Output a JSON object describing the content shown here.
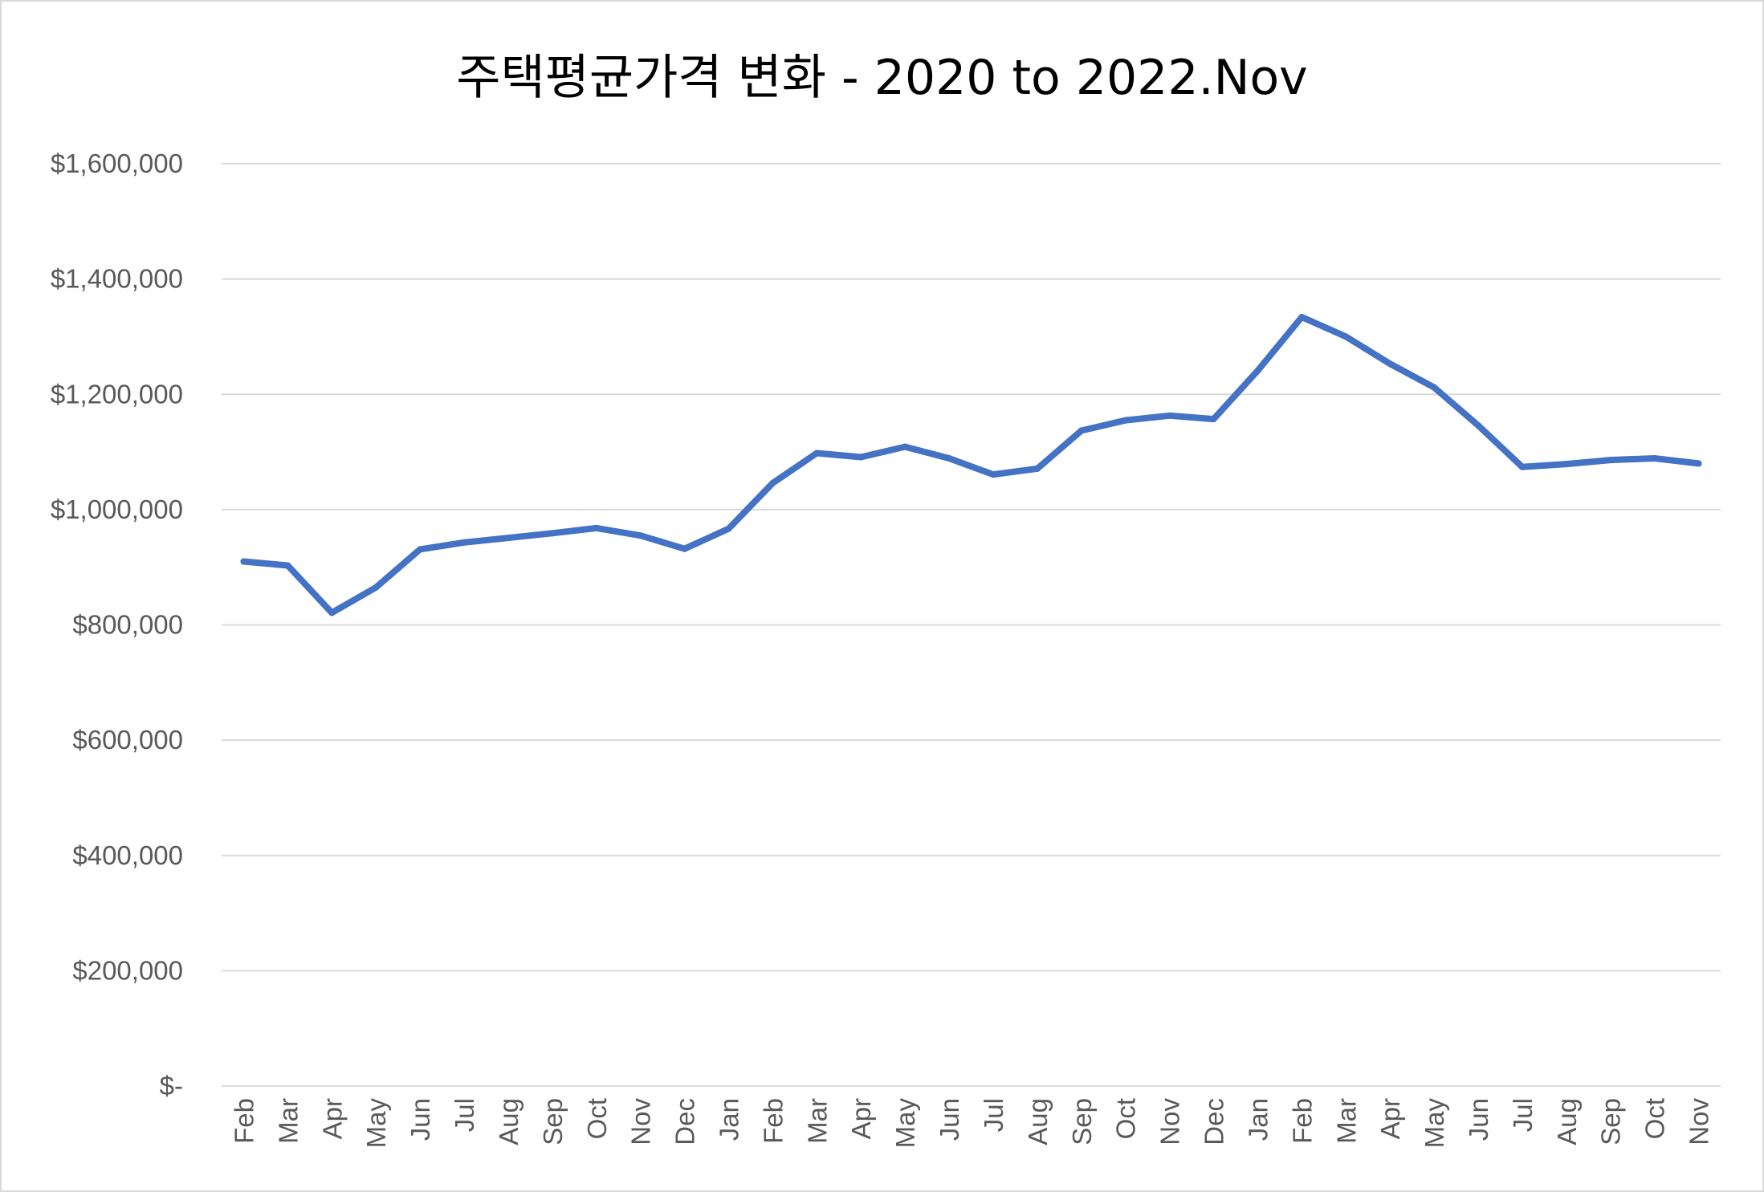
{
  "chart_data": {
    "type": "line",
    "title": "주택평균가격 변화 - 2020 to 2022.Nov",
    "categories": [
      "Feb",
      "Mar",
      "Apr",
      "May",
      "Jun",
      "Jul",
      "Aug",
      "Sep",
      "Oct",
      "Nov",
      "Dec",
      "Jan",
      "Feb",
      "Mar",
      "Apr",
      "May",
      "Jun",
      "Jul",
      "Aug",
      "Sep",
      "Oct",
      "Nov",
      "Dec",
      "Jan",
      "Feb",
      "Mar",
      "Apr",
      "May",
      "Jun",
      "Jul",
      "Aug",
      "Sep",
      "Oct",
      "Nov"
    ],
    "series": [
      {
        "values": [
          910000,
          903000,
          821000,
          865000,
          931000,
          943000,
          951000,
          959000,
          968000,
          955000,
          932000,
          967000,
          1046000,
          1098000,
          1091000,
          1109000,
          1089000,
          1061000,
          1071000,
          1137000,
          1155000,
          1163000,
          1157000,
          1241000,
          1334000,
          1300000,
          1253000,
          1212000,
          1146000,
          1074000,
          1079000,
          1086000,
          1089000,
          1080000
        ]
      }
    ],
    "yticks": [
      "$-",
      "$200,000",
      "$400,000",
      "$600,000",
      "$800,000",
      "$1,000,000",
      "$1,200,000",
      "$1,400,000",
      "$1,600,000"
    ],
    "ylim": [
      0,
      1600000
    ],
    "xlabel": "",
    "ylabel": "",
    "grid": true,
    "legend": "none",
    "line_color": "#4472C4",
    "grid_color": "#d9d9d9"
  }
}
